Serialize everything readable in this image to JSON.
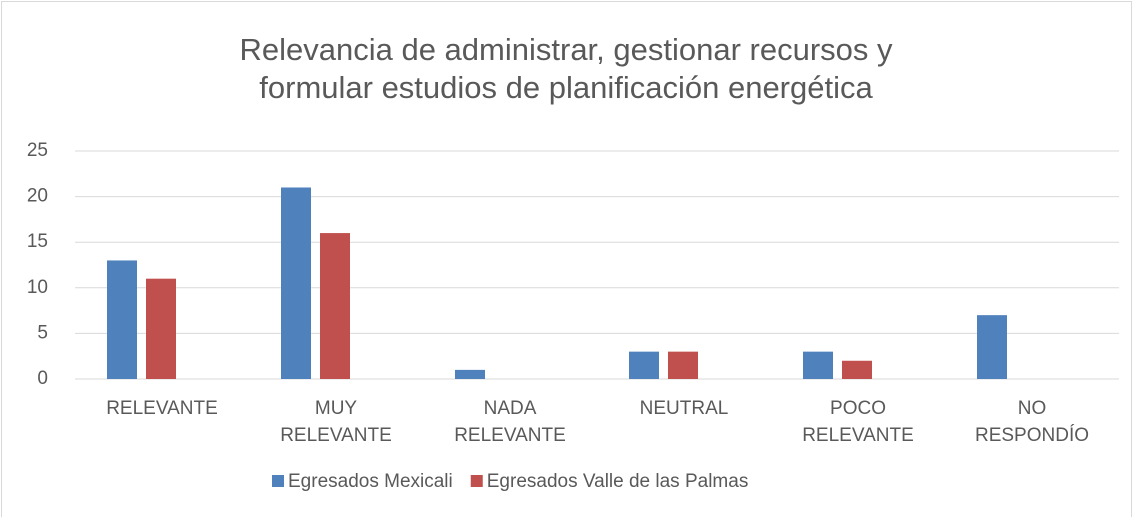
{
  "chart_data": {
    "type": "bar",
    "title": "Relevancia de administrar, gestionar recursos y\nformular estudios de planificación energética",
    "categories": [
      "RELEVANTE",
      "MUY\nRELEVANTE",
      "NADA\nRELEVANTE",
      "NEUTRAL",
      "POCO\nRELEVANTE",
      "NO\nRESPONDÍO"
    ],
    "series": [
      {
        "name": "Egresados Mexicali",
        "color": "#4f81bd",
        "values": [
          13,
          21,
          1,
          3,
          3,
          7
        ]
      },
      {
        "name": "Egresados Valle de las Palmas",
        "color": "#c0504d",
        "values": [
          11,
          16,
          0,
          3,
          2,
          0
        ]
      }
    ],
    "ylim": [
      0,
      25
    ],
    "yticks": [
      0,
      5,
      10,
      15,
      20,
      25
    ],
    "grid": true,
    "legend": "bottom"
  }
}
